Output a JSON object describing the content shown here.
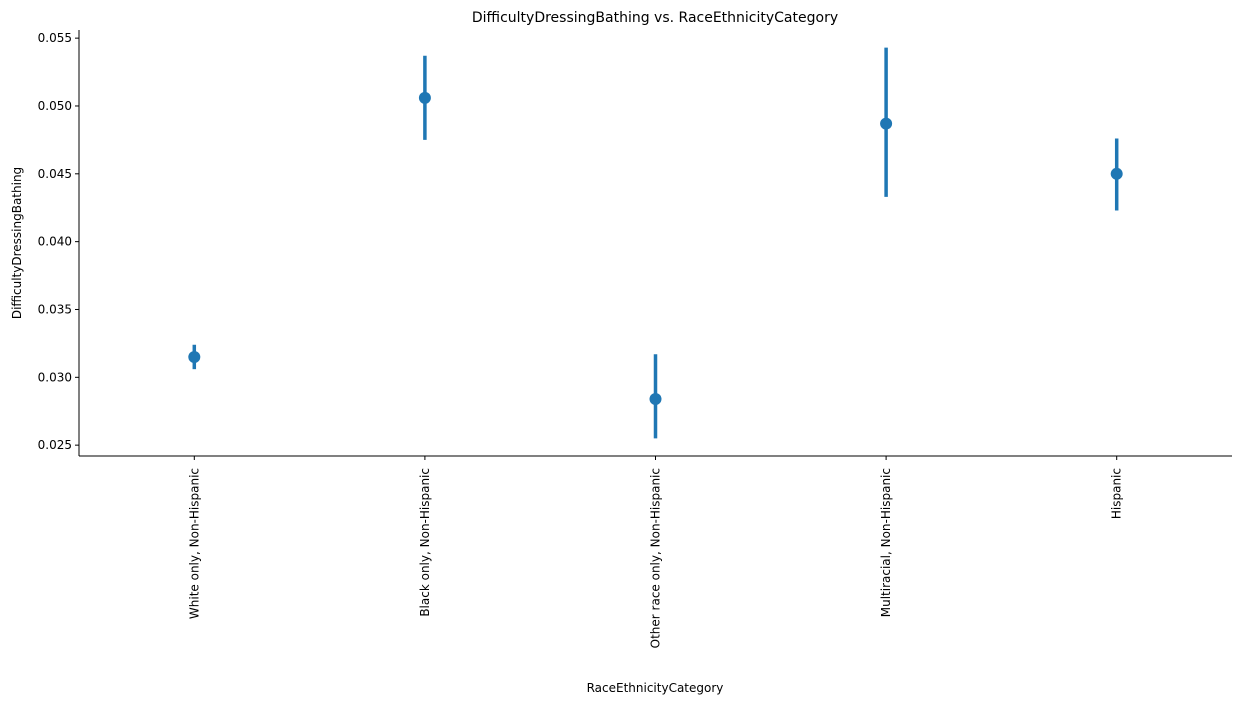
{
  "chart_data": {
    "type": "pointplot",
    "title": "DifficultyDressingBathing vs. RaceEthnicityCategory",
    "xlabel": "RaceEthnicityCategory",
    "ylabel": "DifficultyDressingBathing",
    "categories": [
      "White only, Non-Hispanic",
      "Black only, Non-Hispanic",
      "Other race only, Non-Hispanic",
      "Multiracial, Non-Hispanic",
      "Hispanic"
    ],
    "values": [
      0.0315,
      0.0506,
      0.0284,
      0.0487,
      0.045
    ],
    "ci_low": [
      0.0306,
      0.0475,
      0.0255,
      0.0433,
      0.0423
    ],
    "ci_high": [
      0.0324,
      0.0537,
      0.0317,
      0.0543,
      0.0476
    ],
    "ylim": [
      0.0242,
      0.0556
    ],
    "yticks": [
      0.025,
      0.03,
      0.035,
      0.04,
      0.045,
      0.05,
      0.055
    ],
    "ytick_labels": [
      "0.025",
      "0.030",
      "0.035",
      "0.040",
      "0.045",
      "0.050",
      "0.055"
    ],
    "color": "#1f77b4",
    "grid": false,
    "legend": "none"
  }
}
